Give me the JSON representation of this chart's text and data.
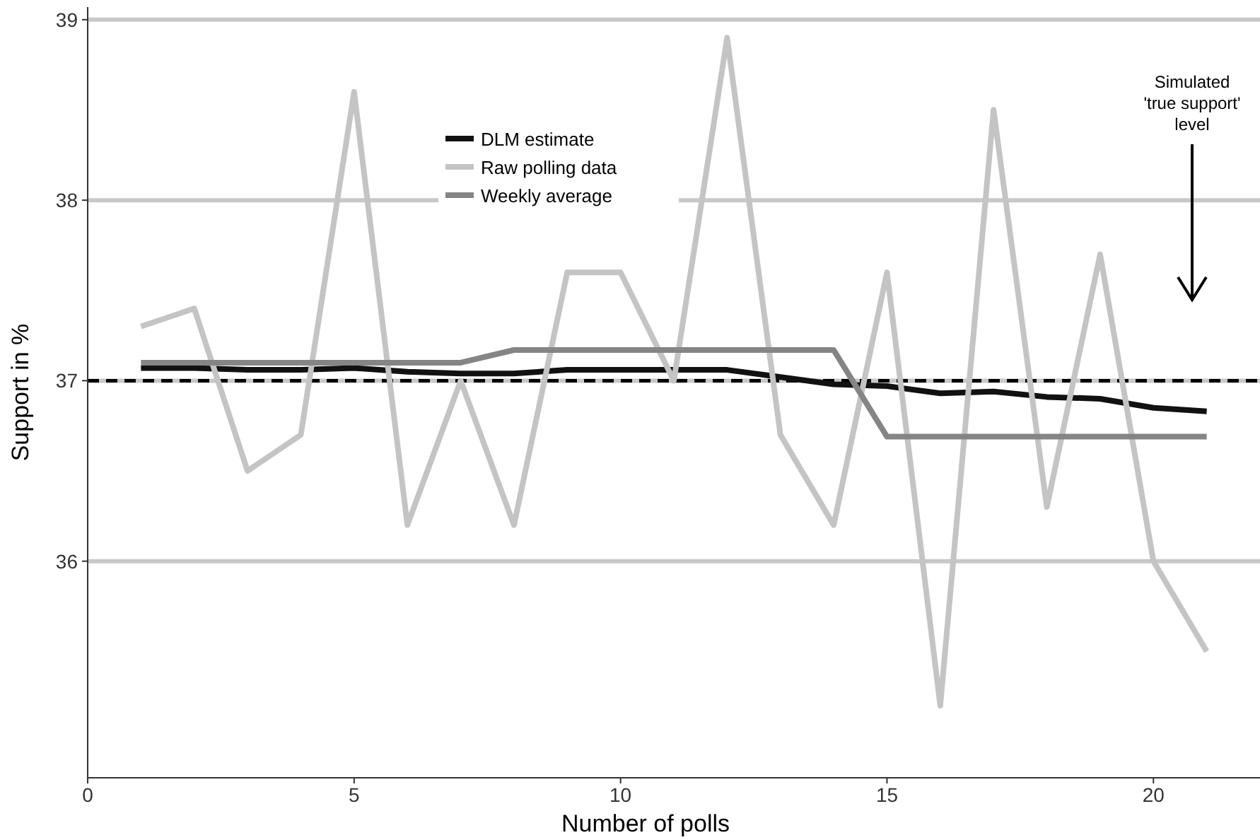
{
  "chart_data": {
    "type": "line",
    "xlabel": "Number of polls",
    "ylabel": "Support in %",
    "x": [
      1,
      2,
      3,
      4,
      5,
      6,
      7,
      8,
      9,
      10,
      11,
      12,
      13,
      14,
      15,
      16,
      17,
      18,
      19,
      20,
      21
    ],
    "series": [
      {
        "name": "DLM estimate",
        "color": "#111111",
        "values": [
          37.07,
          37.07,
          37.06,
          37.06,
          37.07,
          37.05,
          37.04,
          37.04,
          37.06,
          37.06,
          37.06,
          37.06,
          37.02,
          36.98,
          36.97,
          36.93,
          36.94,
          36.91,
          36.9,
          36.85,
          36.83
        ]
      },
      {
        "name": "Raw polling data",
        "color": "#c4c4c4",
        "values": [
          37.3,
          37.4,
          36.5,
          36.7,
          38.6,
          36.2,
          37.0,
          36.2,
          37.6,
          37.6,
          37.0,
          38.9,
          36.7,
          36.2,
          37.6,
          35.2,
          38.5,
          36.3,
          37.7,
          36.0,
          35.5
        ]
      },
      {
        "name": "Weekly average",
        "color": "#858585",
        "values": [
          37.1,
          37.1,
          37.1,
          37.1,
          37.1,
          37.1,
          37.1,
          37.17,
          37.17,
          37.17,
          37.17,
          37.17,
          37.17,
          37.17,
          36.69,
          36.69,
          36.69,
          36.69,
          36.69,
          36.69,
          36.69
        ]
      }
    ],
    "xlim": [
      0,
      22
    ],
    "xticks": [
      0,
      5,
      10,
      15,
      20
    ],
    "ylim": [
      34.8,
      39.07
    ],
    "yticks": [
      36,
      37,
      38,
      39
    ],
    "grid": "y",
    "legend": "top",
    "line_style": "solid",
    "marker": "none",
    "ref_lines": [
      {
        "axis": "y",
        "value": 37,
        "color": "#000000",
        "line_style": "dashed"
      }
    ],
    "annotations": [
      "Simulated\n'true support'\nlevel"
    ]
  }
}
